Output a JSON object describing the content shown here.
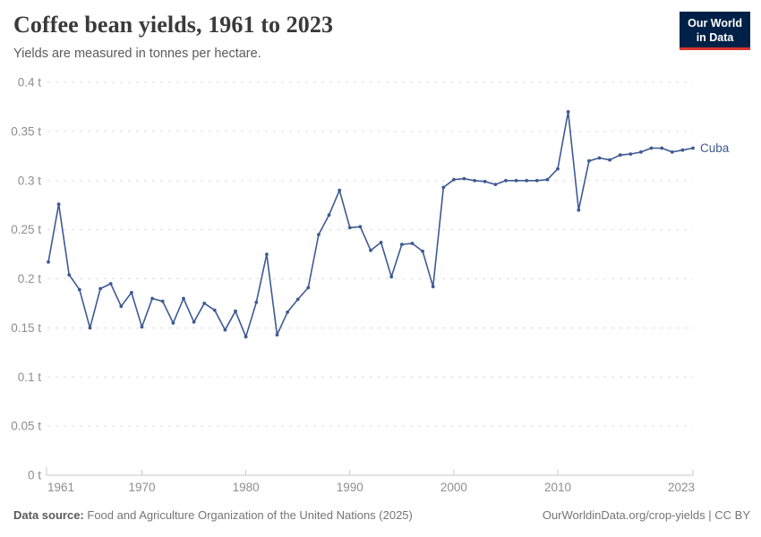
{
  "header": {
    "title": "Coffee bean yields, 1961 to 2023",
    "subtitle": "Yields are measured in tonnes per hectare."
  },
  "logo": {
    "line1": "Our World",
    "line2": "in Data"
  },
  "colors": {
    "series": "#3d5a92",
    "grid": "#dedede",
    "axis": "#c8c8c8",
    "tick_label": "#8e8e8e",
    "logo_bg": "#002147",
    "logo_red": "#d8352f"
  },
  "chart_data": {
    "type": "line",
    "title": "Coffee bean yields, 1961 to 2023",
    "unit": "tonnes per hectare",
    "grid": "horizontal dashed",
    "legend_position": "end-of-line label",
    "xlim": [
      1961,
      2023
    ],
    "ylim": [
      0,
      0.4
    ],
    "x_ticks": [
      1961,
      1970,
      1980,
      1990,
      2000,
      2010,
      2023
    ],
    "x_tick_labels": [
      "1961",
      "1970",
      "1980",
      "1990",
      "2000",
      "2010",
      "2023"
    ],
    "y_ticks": [
      0,
      0.05,
      0.1,
      0.15,
      0.2,
      0.25,
      0.3,
      0.35,
      0.4
    ],
    "y_tick_labels": [
      "0 t",
      "0.05 t",
      "0.1 t",
      "0.15 t",
      "0.2 t",
      "0.25 t",
      "0.3 t",
      "0.35 t",
      "0.4 t"
    ],
    "x": [
      1961,
      1962,
      1963,
      1964,
      1965,
      1966,
      1967,
      1968,
      1969,
      1970,
      1971,
      1972,
      1973,
      1974,
      1975,
      1976,
      1977,
      1978,
      1979,
      1980,
      1981,
      1982,
      1983,
      1984,
      1985,
      1986,
      1987,
      1988,
      1989,
      1990,
      1991,
      1992,
      1993,
      1994,
      1995,
      1996,
      1997,
      1998,
      1999,
      2000,
      2001,
      2002,
      2003,
      2004,
      2005,
      2006,
      2007,
      2008,
      2009,
      2010,
      2011,
      2012,
      2013,
      2014,
      2015,
      2016,
      2017,
      2018,
      2019,
      2020,
      2021,
      2022,
      2023
    ],
    "series": [
      {
        "name": "Cuba",
        "color": "#3d5a92",
        "values": [
          0.217,
          0.276,
          0.204,
          0.189,
          0.15,
          0.19,
          0.195,
          0.172,
          0.186,
          0.151,
          0.18,
          0.177,
          0.155,
          0.18,
          0.156,
          0.175,
          0.168,
          0.148,
          0.167,
          0.141,
          0.176,
          0.225,
          0.143,
          0.166,
          0.179,
          0.191,
          0.245,
          0.265,
          0.29,
          0.252,
          0.253,
          0.229,
          0.237,
          0.202,
          0.235,
          0.236,
          0.228,
          0.192,
          0.293,
          0.301,
          0.302,
          0.3,
          0.299,
          0.296,
          0.3,
          0.3,
          0.3,
          0.3,
          0.301,
          0.312,
          0.37,
          0.27,
          0.32,
          0.323,
          0.321,
          0.326,
          0.327,
          0.329,
          0.333,
          0.333,
          0.329,
          0.331,
          0.333
        ]
      }
    ]
  },
  "footer": {
    "source_label": "Data source:",
    "source_text": "Food and Agriculture Organization of the United Nations (2025)",
    "credit": "OurWorldinData.org/crop-yields | CC BY"
  }
}
